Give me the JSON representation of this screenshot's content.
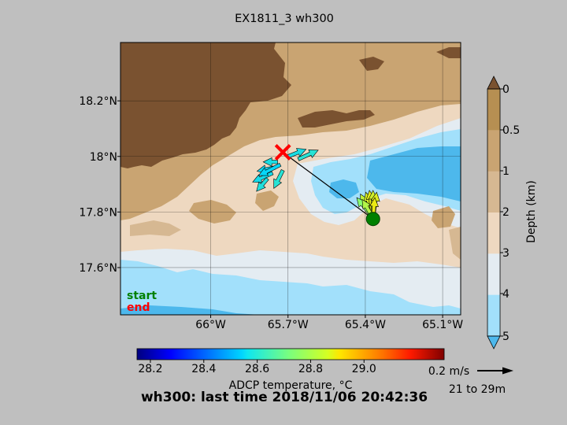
{
  "title": "EX1811_3 wh300",
  "footer_title": "wh300: last time 2018/11/06 20:42:36",
  "chart_data": {
    "type": "map",
    "map": {
      "x_ticks": [
        {
          "value": -66.0,
          "label": "66°W"
        },
        {
          "value": -65.7,
          "label": "65.7°W"
        },
        {
          "value": -65.4,
          "label": "65.4°W"
        },
        {
          "value": -65.1,
          "label": "65.1°W"
        }
      ],
      "y_ticks": [
        {
          "value": 18.2,
          "label": "18.2°N"
        },
        {
          "value": 18.0,
          "label": "18°N"
        },
        {
          "value": 17.8,
          "label": "17.8°N"
        },
        {
          "value": 17.6,
          "label": "17.6°N"
        }
      ],
      "xlim": [
        -66.35,
        -65.03
      ],
      "ylim": [
        17.43,
        18.41
      ],
      "grid": true,
      "track": {
        "start": {
          "lon": -65.37,
          "lat": 17.775
        },
        "end": {
          "lon": -65.72,
          "lat": 18.015
        }
      },
      "markers": {
        "start_label": "start",
        "end_label": "end",
        "start_color": "#008000",
        "end_color": "#ff0000"
      },
      "vectors": [
        {
          "lon": -65.37,
          "lat": 17.78,
          "u": -0.07,
          "v": 0.13,
          "temp": 28.82
        },
        {
          "lon": -65.37,
          "lat": 17.78,
          "u": -0.04,
          "v": 0.14,
          "temp": 28.85
        },
        {
          "lon": -65.37,
          "lat": 17.78,
          "u": -0.02,
          "v": 0.15,
          "temp": 28.87
        },
        {
          "lon": -65.37,
          "lat": 17.78,
          "u": 0.0,
          "v": 0.15,
          "temp": 28.84
        },
        {
          "lon": -65.37,
          "lat": 17.78,
          "u": 0.02,
          "v": 0.14,
          "temp": 28.86
        },
        {
          "lon": -65.37,
          "lat": 17.78,
          "u": -0.09,
          "v": 0.11,
          "temp": 28.74
        },
        {
          "lon": -65.37,
          "lat": 17.78,
          "u": -0.06,
          "v": 0.1,
          "temp": 28.8
        },
        {
          "lon": -65.37,
          "lat": 17.78,
          "u": 0.01,
          "v": 0.11,
          "temp": 28.88
        },
        {
          "lon": -65.66,
          "lat": 17.99,
          "u": 0.11,
          "v": 0.05,
          "temp": 28.6
        },
        {
          "lon": -65.7,
          "lat": 18.0,
          "u": 0.1,
          "v": 0.04,
          "temp": 28.58
        },
        {
          "lon": -65.75,
          "lat": 17.96,
          "u": -0.1,
          "v": -0.02,
          "temp": 28.56
        },
        {
          "lon": -65.76,
          "lat": 17.94,
          "u": -0.11,
          "v": -0.05,
          "temp": 28.57
        },
        {
          "lon": -65.78,
          "lat": 17.92,
          "u": -0.06,
          "v": -0.07,
          "temp": 28.59
        },
        {
          "lon": -65.73,
          "lat": 17.97,
          "u": -0.12,
          "v": -0.06,
          "temp": 28.55
        },
        {
          "lon": -65.72,
          "lat": 17.95,
          "u": -0.05,
          "v": -0.1,
          "temp": 28.6
        },
        {
          "lon": -65.74,
          "lat": 17.98,
          "u": -0.08,
          "v": 0.0,
          "temp": 28.58
        }
      ]
    },
    "depth_colorbar": {
      "label": "Depth (km)",
      "ticks": [
        0,
        0.5,
        1,
        2,
        3,
        4,
        5
      ],
      "tick_labels": [
        "0",
        "0.5",
        "1",
        "2",
        "3",
        "4",
        "5"
      ],
      "colors": [
        "#b68f52",
        "#c9a472",
        "#d6b892",
        "#eed8c0",
        "#e4ecf2",
        "#a2e0fb",
        "#4db8ec"
      ]
    },
    "temperature_colorbar": {
      "label": "ADCP temperature, °C",
      "range": [
        28.15,
        29.3
      ],
      "ticks": [
        28.2,
        28.4,
        28.6,
        28.8,
        29.0
      ],
      "tick_labels": [
        "28.2",
        "28.4",
        "28.6",
        "28.8",
        "29.0"
      ]
    },
    "reference_vector": {
      "label": "0.2 m/s",
      "value": 0.2
    },
    "depth_range": "21 to 29m"
  }
}
